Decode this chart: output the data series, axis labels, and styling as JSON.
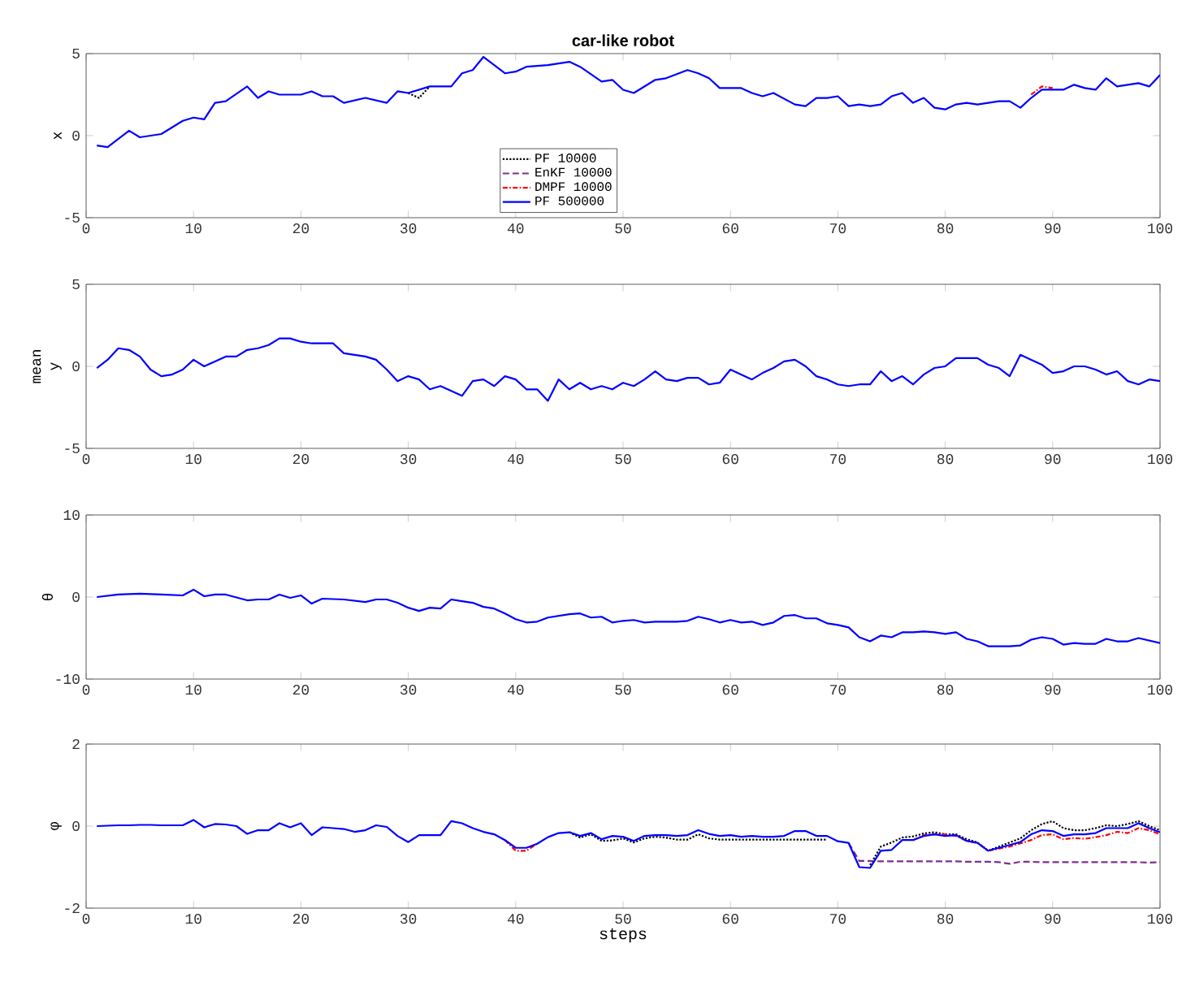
{
  "chart_data": [
    {
      "type": "line",
      "title": "car-like robot",
      "ylabel": "x",
      "legend": "bottom",
      "xlim": [
        0,
        100
      ],
      "xticks": [
        0,
        10,
        20,
        30,
        40,
        50,
        60,
        70,
        80,
        90,
        100
      ],
      "ylim": [
        -5,
        5
      ],
      "yticks": [
        -5,
        0,
        5
      ],
      "grid": false,
      "marker": "none",
      "x": [
        1,
        2,
        4,
        5,
        7,
        9,
        10,
        11,
        12,
        13,
        15,
        16,
        17,
        18,
        20,
        21,
        22,
        23,
        24,
        26,
        28,
        29,
        30,
        32,
        34,
        35,
        36,
        37,
        38,
        39,
        40,
        41,
        43,
        44,
        45,
        46,
        48,
        49,
        50,
        51,
        53,
        54,
        56,
        57,
        58,
        59,
        61,
        62,
        63,
        64,
        66,
        67,
        68,
        69,
        70,
        71,
        72,
        73,
        74,
        75,
        76,
        77,
        78,
        79,
        80,
        81,
        82,
        83,
        84,
        85,
        86,
        87,
        88,
        89,
        90,
        91,
        92,
        93,
        94,
        95,
        96,
        97,
        98,
        99,
        100
      ],
      "series": [
        {
          "name": "PF 10000",
          "color": "#000000",
          "line_style": "dotted",
          "x": [
            30,
            31,
            32
          ],
          "values": [
            2.6,
            2.3,
            3.0
          ]
        },
        {
          "name": "EnKF 10000",
          "color": "#7e2f8e",
          "line_style": "dashed",
          "values": [
            null,
            null,
            null,
            null,
            null,
            null,
            null,
            null,
            null,
            null,
            null,
            null,
            null,
            null,
            null,
            null,
            null,
            null,
            null,
            null,
            null,
            null,
            null,
            null,
            null,
            null,
            null,
            null,
            null,
            null,
            null,
            null,
            null,
            null,
            null,
            null,
            null,
            null,
            null,
            null,
            null,
            null,
            null,
            null,
            null,
            null,
            null,
            null,
            null,
            null,
            null,
            null,
            null,
            null,
            null,
            null,
            null,
            null,
            null,
            null,
            null,
            null,
            null,
            null,
            null,
            null,
            null,
            null,
            null,
            null,
            null,
            null,
            null,
            null,
            null,
            null,
            null,
            null,
            null,
            null,
            null,
            null,
            null,
            null,
            null
          ]
        },
        {
          "name": "DMPF 10000",
          "color": "#ff0000",
          "line_style": "dashdot",
          "x": [
            88,
            89,
            90
          ],
          "values": [
            2.5,
            3.0,
            2.9
          ]
        },
        {
          "name": "PF 500000",
          "color": "#0000ff",
          "line_style": "solid",
          "values": [
            -0.6,
            -0.7,
            0.3,
            -0.1,
            0.1,
            0.9,
            1.1,
            1.0,
            2.0,
            2.1,
            3.0,
            2.3,
            2.7,
            2.5,
            2.5,
            2.7,
            2.4,
            2.4,
            2.0,
            2.3,
            2.0,
            2.7,
            2.6,
            3.0,
            3.0,
            3.8,
            4.0,
            4.8,
            4.3,
            3.8,
            3.9,
            4.2,
            4.3,
            4.4,
            4.5,
            4.2,
            3.3,
            3.4,
            2.8,
            2.6,
            3.4,
            3.5,
            4.0,
            3.8,
            3.5,
            2.9,
            2.9,
            2.6,
            2.4,
            2.6,
            1.9,
            1.8,
            2.3,
            2.3,
            2.4,
            1.8,
            1.9,
            1.8,
            1.9,
            2.4,
            2.6,
            2.0,
            2.3,
            1.7,
            1.6,
            1.9,
            2.0,
            1.9,
            2.0,
            2.1,
            2.1,
            1.7,
            2.3,
            2.8,
            2.8,
            2.8,
            3.1,
            2.9,
            2.8,
            3.5,
            3.0,
            3.1,
            3.2,
            3.0,
            3.7
          ]
        }
      ]
    },
    {
      "type": "line",
      "ylabel": "mean y",
      "xlim": [
        0,
        100
      ],
      "xticks": [
        0,
        10,
        20,
        30,
        40,
        50,
        60,
        70,
        80,
        90,
        100
      ],
      "ylim": [
        -5,
        5
      ],
      "yticks": [
        -5,
        0,
        5
      ],
      "grid": false,
      "marker": "none",
      "x": [
        1,
        2,
        3,
        4,
        5,
        6,
        7,
        8,
        9,
        10,
        11,
        12,
        13,
        14,
        15,
        16,
        17,
        18,
        19,
        20,
        21,
        22,
        23,
        24,
        25,
        26,
        27,
        28,
        29,
        30,
        31,
        32,
        33,
        34,
        35,
        36,
        37,
        38,
        39,
        40,
        41,
        42,
        43,
        44,
        45,
        46,
        47,
        48,
        49,
        50,
        51,
        52,
        53,
        54,
        55,
        56,
        57,
        58,
        59,
        60,
        61,
        62,
        63,
        64,
        65,
        66,
        67,
        68,
        69,
        70,
        71,
        72,
        73,
        74,
        75,
        76,
        77,
        78,
        79,
        80,
        81,
        82,
        83,
        84,
        85,
        86,
        87,
        88,
        89,
        90,
        91,
        92,
        93,
        94,
        95,
        96,
        97,
        98,
        99,
        100
      ],
      "series": [
        {
          "color": "#0000ff",
          "line_style": "solid",
          "values": [
            -0.1,
            0.4,
            1.1,
            1.0,
            0.6,
            -0.2,
            -0.6,
            -0.5,
            -0.2,
            0.4,
            0.0,
            0.3,
            0.6,
            0.6,
            1.0,
            1.1,
            1.3,
            1.7,
            1.7,
            1.5,
            1.4,
            1.4,
            1.4,
            0.8,
            0.7,
            0.6,
            0.4,
            -0.2,
            -0.9,
            -0.6,
            -0.8,
            -1.4,
            -1.2,
            -1.5,
            -1.8,
            -0.9,
            -0.8,
            -1.2,
            -0.6,
            -0.8,
            -1.4,
            -1.4,
            -2.1,
            -0.8,
            -1.4,
            -1.0,
            -1.4,
            -1.2,
            -1.4,
            -1.0,
            -1.2,
            -0.8,
            -0.3,
            -0.8,
            -0.9,
            -0.7,
            -0.7,
            -1.1,
            -1.0,
            -0.2,
            -0.5,
            -0.8,
            -0.4,
            -0.1,
            0.3,
            0.4,
            0.0,
            -0.6,
            -0.8,
            -1.1,
            -1.2,
            -1.1,
            -1.1,
            -0.3,
            -0.9,
            -0.6,
            -1.1,
            -0.5,
            -0.1,
            0.0,
            0.5,
            0.5,
            0.5,
            0.1,
            -0.1,
            -0.6,
            0.7,
            0.4,
            0.1,
            -0.4,
            -0.3,
            0.0,
            0.0,
            -0.2,
            -0.5,
            -0.3,
            -0.9,
            -1.1,
            -0.8,
            -0.9
          ]
        }
      ]
    },
    {
      "type": "line",
      "ylabel": "θ",
      "xlim": [
        0,
        100
      ],
      "xticks": [
        0,
        10,
        20,
        30,
        40,
        50,
        60,
        70,
        80,
        90,
        100
      ],
      "ylim": [
        -10,
        10
      ],
      "yticks": [
        -10,
        0,
        10
      ],
      "grid": false,
      "marker": "none",
      "x": [
        1,
        3,
        5,
        7,
        9,
        10,
        11,
        12,
        13,
        15,
        16,
        17,
        18,
        19,
        20,
        21,
        22,
        24,
        26,
        27,
        28,
        29,
        30,
        31,
        32,
        33,
        34,
        35,
        36,
        37,
        38,
        39,
        40,
        41,
        42,
        43,
        45,
        46,
        47,
        48,
        49,
        50,
        51,
        52,
        53,
        55,
        56,
        57,
        58,
        59,
        60,
        61,
        62,
        63,
        64,
        65,
        66,
        67,
        68,
        69,
        70,
        71,
        72,
        73,
        74,
        75,
        76,
        77,
        78,
        79,
        80,
        81,
        82,
        83,
        84,
        85,
        86,
        87,
        88,
        89,
        90,
        91,
        92,
        93,
        94,
        95,
        96,
        97,
        98,
        99,
        100
      ],
      "series": [
        {
          "color": "#0000ff",
          "line_style": "solid",
          "values": [
            0,
            0.3,
            0.4,
            0.3,
            0.2,
            0.9,
            0.1,
            0.3,
            0.3,
            -0.4,
            -0.3,
            -0.3,
            0.3,
            -0.1,
            0.2,
            -0.8,
            -0.2,
            -0.3,
            -0.6,
            -0.3,
            -0.3,
            -0.7,
            -1.3,
            -1.7,
            -1.3,
            -1.4,
            -0.3,
            -0.5,
            -0.7,
            -1.2,
            -1.4,
            -2.0,
            -2.7,
            -3.1,
            -3.0,
            -2.5,
            -2.1,
            -2.0,
            -2.5,
            -2.4,
            -3.1,
            -2.9,
            -2.8,
            -3.1,
            -3.0,
            -3.0,
            -2.9,
            -2.4,
            -2.7,
            -3.1,
            -2.8,
            -3.1,
            -3.0,
            -3.4,
            -3.1,
            -2.3,
            -2.2,
            -2.6,
            -2.6,
            -3.2,
            -3.4,
            -3.7,
            -4.9,
            -5.4,
            -4.7,
            -4.9,
            -4.3,
            -4.3,
            -4.2,
            -4.3,
            -4.5,
            -4.3,
            -5.1,
            -5.4,
            -6.0,
            -6.0,
            -6.0,
            -5.9,
            -5.2,
            -4.9,
            -5.1,
            -5.8,
            -5.6,
            -5.7,
            -5.7,
            -5.1,
            -5.4,
            -5.4,
            -5.0,
            -5.3,
            -5.6
          ]
        }
      ]
    },
    {
      "type": "line",
      "ylabel": "φ",
      "xlabel": "steps",
      "xlim": [
        0,
        100
      ],
      "xticks": [
        0,
        10,
        20,
        30,
        40,
        50,
        60,
        70,
        80,
        90,
        100
      ],
      "ylim": [
        -2,
        2
      ],
      "yticks": [
        -2,
        0,
        2
      ],
      "grid": false,
      "marker": "none",
      "x": [
        1,
        2,
        3,
        4,
        5,
        6,
        7,
        8,
        9,
        10,
        11,
        12,
        13,
        14,
        15,
        16,
        17,
        18,
        19,
        20,
        21,
        22,
        23,
        24,
        25,
        26,
        27,
        28,
        29,
        30,
        31,
        32,
        33,
        34,
        35,
        36,
        37,
        38,
        39,
        40,
        41,
        42,
        43,
        44,
        45,
        46,
        47,
        48,
        49,
        50,
        51,
        52,
        53,
        54,
        55,
        56,
        57,
        58,
        59,
        60,
        61,
        62,
        63,
        64,
        65,
        66,
        67,
        68,
        69,
        70,
        71,
        72,
        73,
        74,
        75,
        76,
        77,
        78,
        79,
        80,
        81,
        82,
        83,
        84,
        85,
        86,
        87,
        88,
        89,
        90,
        91,
        92,
        93,
        94,
        95,
        96,
        97,
        98,
        99,
        100
      ],
      "series": [
        {
          "color": "#000000",
          "line_style": "dotted",
          "values": [
            null,
            null,
            null,
            null,
            null,
            null,
            null,
            null,
            null,
            null,
            null,
            null,
            null,
            null,
            null,
            null,
            null,
            null,
            null,
            null,
            null,
            null,
            null,
            null,
            null,
            null,
            null,
            null,
            null,
            null,
            null,
            null,
            null,
            null,
            null,
            null,
            null,
            null,
            null,
            null,
            null,
            null,
            null,
            null,
            -0.15,
            -0.28,
            -0.2,
            -0.36,
            -0.35,
            -0.3,
            -0.4,
            -0.3,
            -0.26,
            -0.28,
            -0.33,
            -0.33,
            -0.2,
            -0.3,
            -0.33,
            -0.33,
            -0.33,
            -0.33,
            -0.33,
            -0.33,
            -0.33,
            -0.33,
            -0.33,
            -0.33,
            -0.33,
            null,
            null,
            null,
            -0.95,
            -0.5,
            -0.4,
            -0.28,
            -0.25,
            -0.18,
            -0.15,
            -0.2,
            -0.2,
            -0.32,
            -0.4,
            -0.6,
            -0.5,
            -0.4,
            -0.3,
            -0.1,
            0.05,
            0.12,
            -0.05,
            -0.1,
            -0.1,
            -0.05,
            0.02,
            0.0,
            0.05,
            0.12,
            0.0,
            -0.1
          ]
        },
        {
          "color": "#7e2f8e",
          "line_style": "dashed",
          "values": [
            null,
            null,
            null,
            null,
            null,
            null,
            null,
            null,
            null,
            null,
            null,
            null,
            null,
            null,
            null,
            null,
            null,
            null,
            null,
            null,
            null,
            null,
            null,
            null,
            null,
            null,
            null,
            null,
            null,
            null,
            null,
            null,
            null,
            null,
            null,
            null,
            null,
            null,
            null,
            null,
            null,
            null,
            null,
            null,
            null,
            null,
            null,
            null,
            null,
            null,
            null,
            null,
            null,
            null,
            null,
            null,
            null,
            null,
            null,
            null,
            null,
            null,
            null,
            null,
            null,
            null,
            null,
            null,
            null,
            null,
            -0.41,
            -0.85,
            -0.85,
            -0.86,
            -0.86,
            -0.86,
            -0.86,
            -0.86,
            -0.86,
            -0.86,
            -0.86,
            -0.87,
            -0.87,
            -0.87,
            -0.88,
            -0.92,
            -0.87,
            -0.87,
            -0.88,
            -0.88,
            -0.88,
            -0.88,
            -0.88,
            -0.88,
            -0.88,
            -0.88,
            -0.88,
            -0.88,
            -0.89,
            -0.88
          ]
        },
        {
          "color": "#ff0000",
          "line_style": "dashdot",
          "values": [
            null,
            null,
            null,
            null,
            null,
            null,
            null,
            null,
            null,
            null,
            null,
            null,
            null,
            null,
            null,
            null,
            null,
            null,
            null,
            null,
            null,
            null,
            null,
            null,
            null,
            null,
            null,
            null,
            null,
            null,
            null,
            null,
            null,
            null,
            null,
            null,
            null,
            null,
            -0.34,
            -0.6,
            -0.6,
            -0.43,
            null,
            null,
            null,
            null,
            null,
            null,
            null,
            null,
            null,
            null,
            null,
            null,
            null,
            null,
            null,
            null,
            null,
            null,
            null,
            null,
            null,
            null,
            null,
            null,
            null,
            null,
            null,
            null,
            null,
            null,
            null,
            null,
            null,
            null,
            -0.34,
            -0.22,
            -0.2,
            -0.2,
            -0.24,
            -0.36,
            -0.41,
            -0.6,
            -0.55,
            -0.5,
            -0.42,
            -0.34,
            -0.22,
            -0.2,
            -0.32,
            -0.29,
            -0.31,
            -0.27,
            -0.22,
            -0.14,
            -0.17,
            -0.05,
            -0.1,
            -0.2
          ]
        },
        {
          "color": "#0000ff",
          "line_style": "solid",
          "values": [
            0.0,
            0.01,
            0.02,
            0.02,
            0.03,
            0.03,
            0.02,
            0.02,
            0.02,
            0.15,
            -0.03,
            0.05,
            0.04,
            0.0,
            -0.19,
            -0.1,
            -0.1,
            0.07,
            -0.03,
            0.07,
            -0.22,
            -0.03,
            -0.05,
            -0.07,
            -0.14,
            -0.1,
            0.02,
            -0.02,
            -0.24,
            -0.39,
            -0.22,
            -0.22,
            -0.22,
            0.12,
            0.07,
            -0.05,
            -0.14,
            -0.2,
            -0.34,
            -0.53,
            -0.53,
            -0.43,
            -0.27,
            -0.17,
            -0.15,
            -0.24,
            -0.17,
            -0.32,
            -0.24,
            -0.26,
            -0.36,
            -0.24,
            -0.22,
            -0.22,
            -0.24,
            -0.22,
            -0.1,
            -0.19,
            -0.24,
            -0.22,
            -0.26,
            -0.24,
            -0.26,
            -0.26,
            -0.24,
            -0.12,
            -0.12,
            -0.24,
            -0.24,
            -0.37,
            -0.41,
            -1.0,
            -1.02,
            -0.6,
            -0.58,
            -0.34,
            -0.34,
            -0.24,
            -0.2,
            -0.24,
            -0.22,
            -0.36,
            -0.41,
            -0.6,
            -0.53,
            -0.46,
            -0.39,
            -0.2,
            -0.1,
            -0.12,
            -0.24,
            -0.2,
            -0.2,
            -0.17,
            -0.05,
            -0.05,
            -0.05,
            0.07,
            -0.05,
            -0.15
          ]
        }
      ]
    }
  ]
}
